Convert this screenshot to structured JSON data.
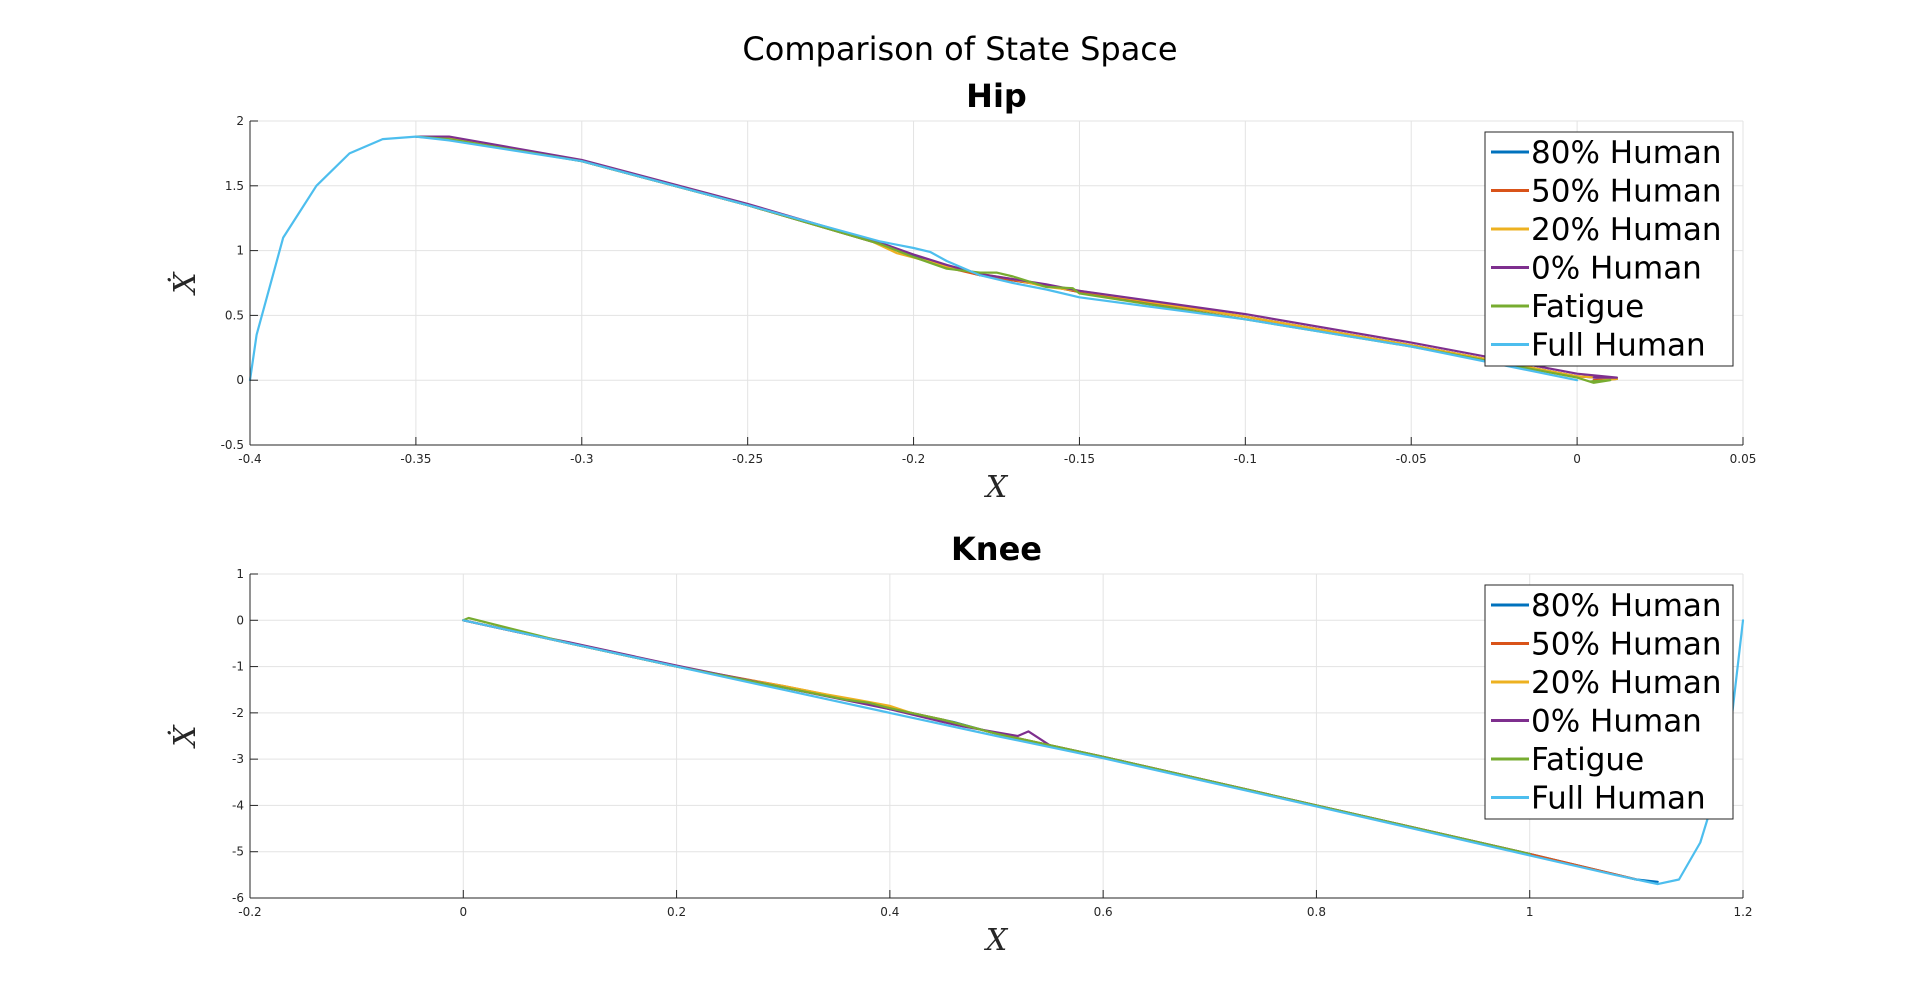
{
  "figure_title": "Comparison of State Space",
  "chart_data": [
    {
      "type": "line",
      "title": "Hip",
      "xlabel": "X",
      "ylabel": "Ẋ",
      "xlim": [
        -0.4,
        0.05
      ],
      "ylim": [
        -0.5,
        2
      ],
      "xticks": [
        -0.4,
        -0.35,
        -0.3,
        -0.25,
        -0.2,
        -0.15,
        -0.1,
        -0.05,
        0,
        0.05
      ],
      "yticks": [
        -0.5,
        0,
        0.5,
        1,
        1.5,
        2
      ],
      "grid": true,
      "legend_position": "top-right",
      "series": [
        {
          "name": "80% Human",
          "color": "#0072BD",
          "x": [
            -0.35,
            -0.34,
            -0.3,
            -0.25,
            -0.21,
            -0.2,
            -0.19,
            -0.18,
            -0.16,
            -0.15,
            -0.1,
            -0.05,
            0,
            0.012,
            0.005
          ],
          "y": [
            1.88,
            1.87,
            1.69,
            1.35,
            1.05,
            0.96,
            0.88,
            0.81,
            0.73,
            0.68,
            0.49,
            0.27,
            0.03,
            0.01,
            0.0
          ]
        },
        {
          "name": "50% Human",
          "color": "#D95319",
          "x": [
            -0.35,
            -0.34,
            -0.3,
            -0.25,
            -0.21,
            -0.2,
            -0.19,
            -0.18,
            -0.16,
            -0.15,
            -0.1,
            -0.05,
            0,
            0.012,
            0.005
          ],
          "y": [
            1.88,
            1.87,
            1.69,
            1.35,
            1.05,
            0.95,
            0.87,
            0.81,
            0.73,
            0.68,
            0.49,
            0.27,
            0.03,
            0.01,
            0.0
          ]
        },
        {
          "name": "20% Human",
          "color": "#EDB120",
          "x": [
            -0.35,
            -0.34,
            -0.3,
            -0.25,
            -0.215,
            -0.205,
            -0.19,
            -0.18,
            -0.17,
            -0.16,
            -0.15,
            -0.1,
            -0.05,
            0,
            0.012,
            0.005
          ],
          "y": [
            1.88,
            1.87,
            1.69,
            1.35,
            1.1,
            0.98,
            0.88,
            0.82,
            0.78,
            0.72,
            0.69,
            0.49,
            0.27,
            0.03,
            0.01,
            -0.01
          ]
        },
        {
          "name": "0% Human",
          "color": "#7E2F8E",
          "x": [
            -0.35,
            -0.34,
            -0.3,
            -0.25,
            -0.21,
            -0.2,
            -0.19,
            -0.18,
            -0.16,
            -0.15,
            -0.1,
            -0.05,
            0,
            0.012,
            0.005
          ],
          "y": [
            1.88,
            1.88,
            1.7,
            1.36,
            1.06,
            0.97,
            0.89,
            0.82,
            0.74,
            0.69,
            0.51,
            0.29,
            0.05,
            0.02,
            0.02
          ]
        },
        {
          "name": "Fatigue",
          "color": "#77AC30",
          "x": [
            -0.35,
            -0.34,
            -0.3,
            -0.25,
            -0.21,
            -0.2,
            -0.19,
            -0.18,
            -0.175,
            -0.17,
            -0.16,
            -0.152,
            -0.15,
            -0.1,
            -0.05,
            0,
            0.005,
            0.01,
            0.004
          ],
          "y": [
            1.88,
            1.86,
            1.69,
            1.35,
            1.05,
            0.95,
            0.86,
            0.83,
            0.83,
            0.8,
            0.72,
            0.71,
            0.67,
            0.47,
            0.26,
            0.02,
            -0.02,
            0.0,
            -0.01
          ]
        },
        {
          "name": "Full Human",
          "color": "#4DBEEE",
          "x": [
            -0.4,
            -0.398,
            -0.39,
            -0.38,
            -0.37,
            -0.36,
            -0.35,
            -0.34,
            -0.3,
            -0.25,
            -0.21,
            -0.2,
            -0.195,
            -0.19,
            -0.18,
            -0.17,
            -0.16,
            -0.15,
            -0.1,
            -0.05,
            0
          ],
          "y": [
            0.0,
            0.35,
            1.1,
            1.5,
            1.75,
            1.86,
            1.88,
            1.85,
            1.69,
            1.35,
            1.07,
            1.02,
            0.99,
            0.92,
            0.81,
            0.75,
            0.7,
            0.64,
            0.47,
            0.26,
            0.0
          ]
        }
      ]
    },
    {
      "type": "line",
      "title": "Knee",
      "xlabel": "X",
      "ylabel": "Ẋ",
      "xlim": [
        -0.2,
        1.2
      ],
      "ylim": [
        -6,
        1
      ],
      "xticks": [
        -0.2,
        0,
        0.2,
        0.4,
        0.6,
        0.8,
        1,
        1.2
      ],
      "yticks": [
        -6,
        -5,
        -4,
        -3,
        -2,
        -1,
        0,
        1
      ],
      "grid": true,
      "legend_position": "top-right",
      "series": [
        {
          "name": "80% Human",
          "color": "#0072BD",
          "x": [
            0,
            0.1,
            0.2,
            0.3,
            0.36,
            0.38,
            0.4,
            0.42,
            0.44,
            0.46,
            0.5,
            0.6,
            0.8,
            1.0,
            1.1,
            1.12
          ],
          "y": [
            0.0,
            -0.5,
            -1.0,
            -1.45,
            -1.72,
            -1.8,
            -1.92,
            -2.0,
            -2.1,
            -2.2,
            -2.45,
            -2.95,
            -4.0,
            -5.05,
            -5.6,
            -5.65
          ]
        },
        {
          "name": "50% Human",
          "color": "#D95319",
          "x": [
            0,
            0.1,
            0.2,
            0.3,
            0.35,
            0.37,
            0.39,
            0.41,
            0.43,
            0.45,
            0.5,
            0.6,
            0.8,
            1.0,
            1.1
          ],
          "y": [
            0.0,
            -0.5,
            -1.0,
            -1.42,
            -1.65,
            -1.75,
            -1.82,
            -1.95,
            -2.05,
            -2.15,
            -2.45,
            -2.95,
            -4.0,
            -5.05,
            -5.6
          ]
        },
        {
          "name": "20% Human",
          "color": "#EDB120",
          "x": [
            0,
            0.1,
            0.2,
            0.25,
            0.3,
            0.34,
            0.37,
            0.4,
            0.42,
            0.45,
            0.5,
            0.6,
            0.8,
            1.0
          ],
          "y": [
            0.0,
            -0.5,
            -1.0,
            -1.22,
            -1.42,
            -1.6,
            -1.72,
            -1.85,
            -2.0,
            -2.15,
            -2.45,
            -2.95,
            -4.0,
            -5.05
          ]
        },
        {
          "name": "0% Human",
          "color": "#7E2F8E",
          "x": [
            0,
            0.05,
            0.1,
            0.2,
            0.3,
            0.4,
            0.45,
            0.47,
            0.49,
            0.5,
            0.52,
            0.53,
            0.55,
            0.6,
            0.8,
            1.0
          ],
          "y": [
            0.0,
            -0.25,
            -0.48,
            -0.98,
            -1.45,
            -1.92,
            -2.2,
            -2.3,
            -2.38,
            -2.42,
            -2.5,
            -2.4,
            -2.7,
            -2.95,
            -4.0,
            -5.05
          ]
        },
        {
          "name": "Fatigue",
          "color": "#77AC30",
          "x": [
            0,
            0.005,
            0.1,
            0.2,
            0.3,
            0.36,
            0.38,
            0.4,
            0.42,
            0.45,
            0.5,
            0.6,
            0.8,
            1.0
          ],
          "y": [
            0.0,
            0.05,
            -0.5,
            -1.0,
            -1.45,
            -1.72,
            -1.78,
            -1.9,
            -2.0,
            -2.15,
            -2.45,
            -2.95,
            -4.0,
            -5.05
          ]
        },
        {
          "name": "Full Human",
          "color": "#4DBEEE",
          "x": [
            0,
            0.1,
            0.2,
            0.3,
            0.4,
            0.5,
            0.6,
            0.8,
            1.0,
            1.08,
            1.12,
            1.14,
            1.16,
            1.18,
            1.19,
            1.2
          ],
          "y": [
            0.0,
            -0.5,
            -1.0,
            -1.5,
            -2.0,
            -2.5,
            -2.98,
            -4.02,
            -5.08,
            -5.5,
            -5.7,
            -5.6,
            -4.8,
            -3.3,
            -2.0,
            0.0
          ]
        }
      ]
    }
  ]
}
